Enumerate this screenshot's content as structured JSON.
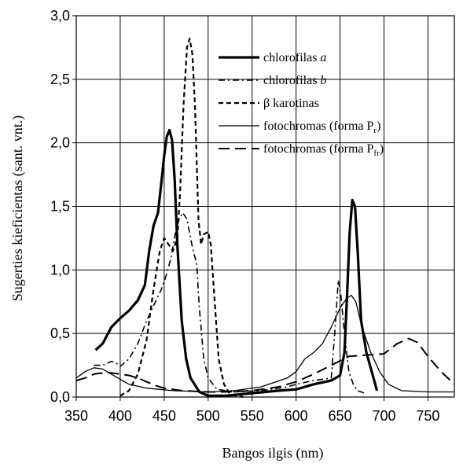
{
  "chart_data": {
    "type": "line",
    "xlabel": "Bangos ilgis (nm)",
    "ylabel": "Sugerties kieficientas (sant. vnt.)",
    "xlim": [
      350,
      780
    ],
    "ylim": [
      0,
      3.0
    ],
    "x_ticks": [
      "350",
      "400",
      "450",
      "500",
      "550",
      "600",
      "650",
      "700",
      "750"
    ],
    "y_ticks": [
      "0,0",
      "0,5",
      "1,0",
      "1,5",
      "2,0",
      "2,5",
      "3,0"
    ],
    "grid": true,
    "legend_position": "top-right",
    "series": [
      {
        "name": "chlorofilas a",
        "legend_main": "chlorofilas ",
        "legend_italic": "a",
        "legend_sub": "",
        "legend_tail": "",
        "dash": "",
        "width": 3.2,
        "points": [
          [
            372,
            0.37
          ],
          [
            380,
            0.42
          ],
          [
            390,
            0.55
          ],
          [
            400,
            0.62
          ],
          [
            410,
            0.68
          ],
          [
            420,
            0.76
          ],
          [
            428,
            0.88
          ],
          [
            433,
            1.15
          ],
          [
            438,
            1.35
          ],
          [
            443,
            1.45
          ],
          [
            447,
            1.7
          ],
          [
            450,
            1.9
          ],
          [
            453,
            2.05
          ],
          [
            456,
            2.1
          ],
          [
            459,
            2.02
          ],
          [
            462,
            1.7
          ],
          [
            465,
            1.2
          ],
          [
            470,
            0.6
          ],
          [
            475,
            0.3
          ],
          [
            480,
            0.15
          ],
          [
            490,
            0.04
          ],
          [
            500,
            0.01
          ],
          [
            520,
            0.01
          ],
          [
            550,
            0.03
          ],
          [
            580,
            0.05
          ],
          [
            600,
            0.06
          ],
          [
            620,
            0.1
          ],
          [
            640,
            0.13
          ],
          [
            650,
            0.17
          ],
          [
            655,
            0.35
          ],
          [
            658,
            0.8
          ],
          [
            661,
            1.3
          ],
          [
            664,
            1.55
          ],
          [
            667,
            1.5
          ],
          [
            670,
            1.15
          ],
          [
            674,
            0.6
          ],
          [
            680,
            0.35
          ],
          [
            686,
            0.2
          ],
          [
            692,
            0.05
          ]
        ]
      },
      {
        "name": "chlorofilas b",
        "legend_main": "chlorofilas ",
        "legend_italic": "b",
        "legend_sub": "",
        "legend_tail": "",
        "dash": "8,4,2,4",
        "width": 1.6,
        "points": [
          [
            370,
            0.25
          ],
          [
            380,
            0.25
          ],
          [
            390,
            0.28
          ],
          [
            395,
            0.27
          ],
          [
            400,
            0.24
          ],
          [
            410,
            0.3
          ],
          [
            420,
            0.42
          ],
          [
            430,
            0.6
          ],
          [
            440,
            0.75
          ],
          [
            447,
            0.85
          ],
          [
            452,
            0.95
          ],
          [
            458,
            1.1
          ],
          [
            463,
            1.3
          ],
          [
            467,
            1.4
          ],
          [
            471,
            1.45
          ],
          [
            476,
            1.4
          ],
          [
            480,
            1.25
          ],
          [
            483,
            1.15
          ],
          [
            487,
            1.05
          ],
          [
            490,
            0.7
          ],
          [
            495,
            0.3
          ],
          [
            500,
            0.15
          ],
          [
            510,
            0.06
          ],
          [
            530,
            0.04
          ],
          [
            560,
            0.05
          ],
          [
            590,
            0.08
          ],
          [
            600,
            0.1
          ],
          [
            620,
            0.13
          ],
          [
            640,
            0.15
          ],
          [
            645,
            0.6
          ],
          [
            648,
            0.92
          ],
          [
            651,
            0.8
          ],
          [
            655,
            0.5
          ],
          [
            660,
            0.2
          ],
          [
            665,
            0.1
          ],
          [
            670,
            0.05
          ],
          [
            678,
            0.03
          ]
        ]
      },
      {
        "name": "β karotinas",
        "legend_main": "β karotinas",
        "legend_italic": "",
        "legend_sub": "",
        "legend_tail": "",
        "dash": "6,4",
        "width": 2.2,
        "points": [
          [
            400,
            0.01
          ],
          [
            410,
            0.05
          ],
          [
            420,
            0.18
          ],
          [
            430,
            0.45
          ],
          [
            438,
            0.85
          ],
          [
            445,
            1.15
          ],
          [
            450,
            1.25
          ],
          [
            455,
            1.2
          ],
          [
            460,
            1.15
          ],
          [
            465,
            1.25
          ],
          [
            468,
            1.6
          ],
          [
            472,
            2.3
          ],
          [
            476,
            2.75
          ],
          [
            479,
            2.82
          ],
          [
            482,
            2.7
          ],
          [
            485,
            2.3
          ],
          [
            489,
            1.4
          ],
          [
            492,
            1.2
          ],
          [
            495,
            1.28
          ],
          [
            500,
            1.3
          ],
          [
            503,
            1.2
          ],
          [
            508,
            0.7
          ],
          [
            512,
            0.3
          ],
          [
            518,
            0.1
          ],
          [
            525,
            0.02
          ],
          [
            540,
            0.0
          ]
        ]
      },
      {
        "name": "fotochromas (forma Pr)",
        "legend_main": "fotochromas (forma P",
        "legend_italic": "",
        "legend_sub": "r",
        "legend_tail": ")",
        "dash": "",
        "width": 1.3,
        "points": [
          [
            350,
            0.15
          ],
          [
            360,
            0.2
          ],
          [
            370,
            0.23
          ],
          [
            380,
            0.22
          ],
          [
            390,
            0.18
          ],
          [
            400,
            0.14
          ],
          [
            410,
            0.1
          ],
          [
            430,
            0.07
          ],
          [
            460,
            0.05
          ],
          [
            500,
            0.04
          ],
          [
            530,
            0.05
          ],
          [
            560,
            0.08
          ],
          [
            590,
            0.15
          ],
          [
            600,
            0.2
          ],
          [
            610,
            0.3
          ],
          [
            620,
            0.35
          ],
          [
            630,
            0.42
          ],
          [
            640,
            0.55
          ],
          [
            650,
            0.7
          ],
          [
            658,
            0.78
          ],
          [
            663,
            0.8
          ],
          [
            668,
            0.75
          ],
          [
            675,
            0.55
          ],
          [
            685,
            0.35
          ],
          [
            695,
            0.2
          ],
          [
            705,
            0.1
          ],
          [
            720,
            0.05
          ],
          [
            750,
            0.04
          ],
          [
            780,
            0.04
          ]
        ]
      },
      {
        "name": "fotochromas (forma Pfr)",
        "legend_main": "fotochromas (forma P",
        "legend_italic": "",
        "legend_sub": "fr",
        "legend_tail": ")",
        "dash": "14,7",
        "width": 2,
        "points": [
          [
            350,
            0.13
          ],
          [
            360,
            0.15
          ],
          [
            370,
            0.18
          ],
          [
            380,
            0.19
          ],
          [
            390,
            0.19
          ],
          [
            400,
            0.18
          ],
          [
            410,
            0.17
          ],
          [
            420,
            0.15
          ],
          [
            430,
            0.12
          ],
          [
            440,
            0.09
          ],
          [
            450,
            0.07
          ],
          [
            470,
            0.05
          ],
          [
            500,
            0.04
          ],
          [
            520,
            0.04
          ],
          [
            550,
            0.05
          ],
          [
            580,
            0.08
          ],
          [
            600,
            0.12
          ],
          [
            620,
            0.18
          ],
          [
            640,
            0.25
          ],
          [
            660,
            0.32
          ],
          [
            680,
            0.33
          ],
          [
            700,
            0.34
          ],
          [
            715,
            0.42
          ],
          [
            728,
            0.46
          ],
          [
            738,
            0.43
          ],
          [
            750,
            0.32
          ],
          [
            765,
            0.2
          ],
          [
            780,
            0.1
          ]
        ]
      }
    ]
  }
}
